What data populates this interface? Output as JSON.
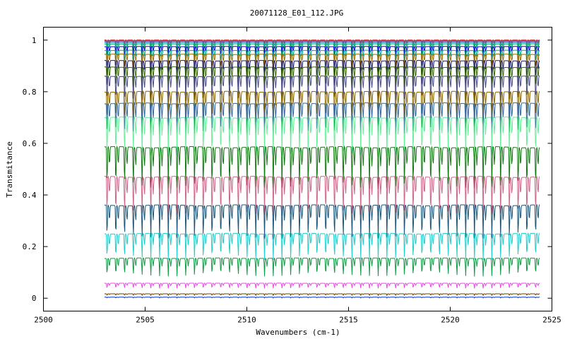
{
  "chart_data": {
    "type": "line",
    "title": "20071128_E01_112.JPG",
    "xlabel": "Wavenumbers (cm-1)",
    "ylabel": "Transmitance",
    "xlim": [
      2500,
      2525
    ],
    "ylim": [
      -0.05,
      1.05
    ],
    "x_ticks": [
      2500,
      2505,
      2510,
      2515,
      2520,
      2525
    ],
    "x_tick_labels": [
      "2500",
      "2505",
      "2510",
      "2515",
      "2520",
      "2525"
    ],
    "y_ticks": [
      0,
      0.2,
      0.4,
      0.6,
      0.8,
      1
    ],
    "y_tick_labels": [
      "0",
      "0.2",
      "0.4",
      "0.6",
      "0.8",
      "1"
    ],
    "grid": false,
    "x_range_of_data": [
      2503.0,
      2524.4
    ],
    "absorption_line_spacing": 0.43,
    "series": [
      {
        "color": "#cc0000",
        "baseline": 1.0,
        "depth": 0.006
      },
      {
        "color": "#4a9b4a",
        "baseline": 0.998,
        "depth": 0.01
      },
      {
        "color": "#9933cc",
        "baseline": 0.996,
        "depth": 0.012
      },
      {
        "color": "#666666",
        "baseline": 0.994,
        "depth": 0.015
      },
      {
        "color": "#3399cc",
        "baseline": 0.99,
        "depth": 0.02
      },
      {
        "color": "#00aa55",
        "baseline": 0.985,
        "depth": 0.03
      },
      {
        "color": "#0000cc",
        "baseline": 0.975,
        "depth": 0.04
      },
      {
        "color": "#00aa88",
        "baseline": 0.96,
        "depth": 0.05
      },
      {
        "color": "#996600",
        "baseline": 0.945,
        "depth": 0.06
      },
      {
        "color": "#1a1a66",
        "baseline": 0.92,
        "depth": 0.075
      },
      {
        "color": "#336600",
        "baseline": 0.895,
        "depth": 0.09
      },
      {
        "color": "#4a4a88",
        "baseline": 0.86,
        "depth": 0.1
      },
      {
        "color": "#886600",
        "baseline": 0.8,
        "depth": 0.115
      },
      {
        "color": "#336699",
        "baseline": 0.755,
        "depth": 0.13
      },
      {
        "color": "#66ee99",
        "baseline": 0.7,
        "depth": 0.15
      },
      {
        "color": "#117711",
        "baseline": 0.585,
        "depth": 0.16
      },
      {
        "color": "#cc6688",
        "baseline": 0.47,
        "depth": 0.15
      },
      {
        "color": "#1a5577",
        "baseline": 0.36,
        "depth": 0.13
      },
      {
        "color": "#22cccc",
        "baseline": 0.25,
        "depth": 0.1
      },
      {
        "color": "#119944",
        "baseline": 0.155,
        "depth": 0.07
      },
      {
        "color": "#ee44ee",
        "baseline": 0.058,
        "depth": 0.02
      },
      {
        "color": "#664400",
        "baseline": 0.017,
        "depth": 0.006
      },
      {
        "color": "#0033cc",
        "baseline": 0.004,
        "depth": 0.003
      }
    ]
  }
}
